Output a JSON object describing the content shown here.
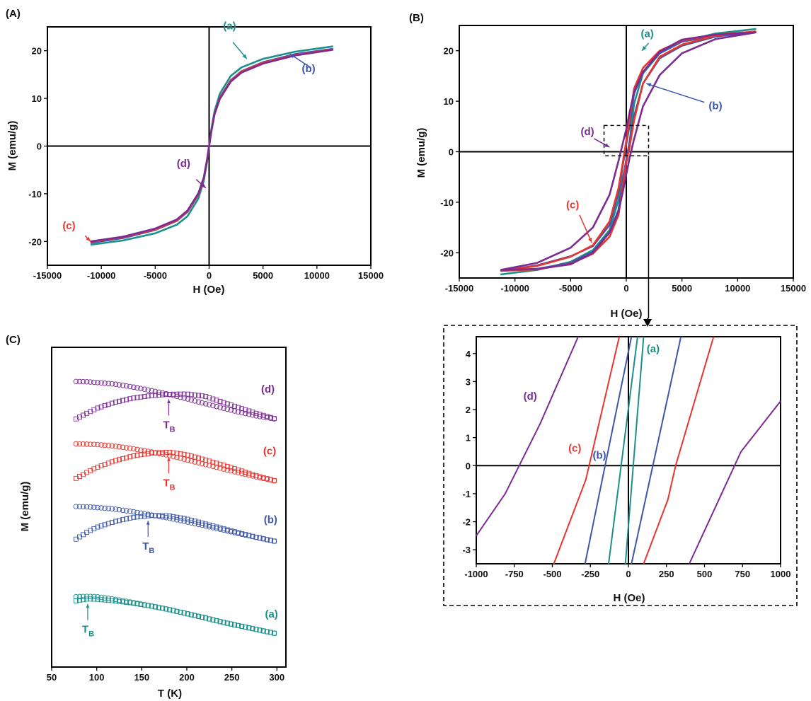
{
  "colors": {
    "a": "#1b8f8b",
    "b": "#3d57a8",
    "c": "#e8352f",
    "d": "#7c2b93",
    "axis": "#000000"
  },
  "chart_data": [
    {
      "id": "A",
      "panel_label": "(A)",
      "type": "line",
      "xlabel": "H (Oe)",
      "ylabel": "M (emu/g)",
      "xlim": [
        -15000,
        15000
      ],
      "ylim": [
        -25,
        25
      ],
      "xticks": [
        -15000,
        -10000,
        -5000,
        0,
        5000,
        10000,
        15000
      ],
      "xtick_labels": [
        "-15000",
        "-10000",
        "-5000",
        "0",
        "5000",
        "10000",
        "15000"
      ],
      "yticks": [
        -20,
        -10,
        0,
        10,
        20
      ],
      "ytick_labels": [
        "-20",
        "-10",
        "0",
        "10",
        "20"
      ],
      "series": [
        {
          "name": "(a)",
          "color_key": "a",
          "x": [
            -11000,
            -8000,
            -5000,
            -3000,
            -2000,
            -1000,
            -500,
            -200,
            0,
            200,
            500,
            1000,
            2000,
            3000,
            5000,
            8000,
            11500
          ],
          "y": [
            -20.7,
            -19.8,
            -18.3,
            -16.5,
            -14.7,
            -11.0,
            -7.3,
            -3.4,
            0,
            3.4,
            7.3,
            11.0,
            14.7,
            16.5,
            18.3,
            19.8,
            20.9
          ]
        },
        {
          "name": "(b)",
          "color_key": "b",
          "x": [
            -11000,
            -8000,
            -5000,
            -3000,
            -2000,
            -1000,
            -500,
            -200,
            0,
            200,
            500,
            1000,
            2000,
            3000,
            5000,
            8000,
            11500
          ],
          "y": [
            -20.3,
            -19.3,
            -17.6,
            -15.7,
            -13.8,
            -10.2,
            -6.8,
            -3.1,
            0,
            3.1,
            6.8,
            10.2,
            13.8,
            15.7,
            17.6,
            19.3,
            20.4
          ]
        },
        {
          "name": "(c)",
          "color_key": "c",
          "x": [
            -11000,
            -8000,
            -5000,
            -3000,
            -2000,
            -1000,
            -500,
            -200,
            0,
            200,
            500,
            1000,
            2000,
            3000,
            5000,
            8000,
            11500
          ],
          "y": [
            -20.1,
            -19.1,
            -17.5,
            -15.6,
            -13.7,
            -10.1,
            -6.7,
            -3.0,
            0,
            3.0,
            6.7,
            10.1,
            13.7,
            15.6,
            17.5,
            19.1,
            20.3
          ]
        },
        {
          "name": "(d)",
          "color_key": "d",
          "x": [
            -11000,
            -8000,
            -5000,
            -3000,
            -2000,
            -1000,
            -500,
            -200,
            0,
            200,
            500,
            1000,
            2000,
            3000,
            5000,
            8000,
            11500
          ],
          "y": [
            -20.0,
            -19.0,
            -17.3,
            -15.4,
            -13.5,
            -9.9,
            -6.6,
            -2.9,
            0,
            2.9,
            6.6,
            9.9,
            13.5,
            15.4,
            17.3,
            19.0,
            20.2
          ]
        }
      ],
      "annotations": [
        {
          "text": "(a)",
          "color_key": "a",
          "x": 1300,
          "y": 24.5,
          "ax": 2200,
          "ay": 21.8,
          "bx": 3500,
          "by": 18.3
        },
        {
          "text": "(b)",
          "color_key": "b",
          "x": 8600,
          "y": 15.5,
          "ax": 9400,
          "ay": 16.5,
          "bx": 7500,
          "by": 19.3
        },
        {
          "text": "(c)",
          "color_key": "c",
          "x": -13600,
          "y": -17.4,
          "ax": -11500,
          "ay": -18.8,
          "bx": -11000,
          "by": -20.0
        },
        {
          "text": "(d)",
          "color_key": "d",
          "x": -3000,
          "y": -4.4,
          "ax": -1200,
          "ay": -7.0,
          "bx": -300,
          "by": -8.8
        }
      ]
    },
    {
      "id": "B",
      "panel_label": "(B)",
      "type": "line",
      "xlabel": "H (Oe)",
      "ylabel": "M (emu/g)",
      "xlim": [
        -15000,
        15000
      ],
      "ylim": [
        -25,
        25
      ],
      "xticks": [
        -15000,
        -10000,
        -5000,
        0,
        5000,
        10000,
        15000
      ],
      "xtick_labels": [
        "-15000",
        "-10000",
        "-5000",
        "0",
        "5000",
        "10000",
        "15000"
      ],
      "yticks": [
        -20,
        -10,
        0,
        10,
        20
      ],
      "ytick_labels": [
        "-20",
        "-10",
        "0",
        "10",
        "20"
      ],
      "series": [
        {
          "name": "(a)",
          "color_key": "a",
          "x": [
            -11300,
            -8000,
            -5000,
            -3000,
            -1500,
            -700,
            -300,
            0,
            300,
            700,
            1500,
            3000,
            5000,
            8000,
            11600,
            8000,
            5000,
            3000,
            1500,
            700,
            300,
            0,
            -300,
            -700,
            -1500,
            -3000,
            -5000,
            -8000,
            -11300
          ],
          "y": [
            -24.3,
            -23.4,
            -21.8,
            -19.5,
            -15.5,
            -9.5,
            -5.0,
            -2.0,
            2.0,
            9.5,
            15.5,
            19.5,
            21.8,
            23.4,
            24.3,
            23.4,
            21.8,
            19.5,
            15.5,
            9.5,
            5.0,
            2.0,
            -2.0,
            -9.5,
            -15.5,
            -19.5,
            -21.8,
            -23.4,
            -24.3
          ]
        },
        {
          "name": "(b)",
          "color_key": "b",
          "x": [
            -11300,
            -8000,
            -5000,
            -3000,
            -1500,
            -700,
            -300,
            0,
            300,
            700,
            1500,
            3000,
            5000,
            8000,
            11600,
            8000,
            5000,
            3000,
            1500,
            700,
            300,
            0,
            -300,
            -700,
            -1500,
            -3000,
            -5000,
            -8000,
            -11300
          ],
          "y": [
            -23.6,
            -22.5,
            -20.7,
            -18.7,
            -14.5,
            -8.0,
            -2.5,
            1.5,
            5.5,
            11.5,
            15.8,
            19.5,
            21.8,
            23.0,
            23.7,
            22.8,
            21.0,
            18.5,
            13.5,
            7.0,
            2.0,
            -1.5,
            -5.5,
            -11.5,
            -16.0,
            -19.8,
            -22.0,
            -23.2,
            -23.6
          ]
        },
        {
          "name": "(c)",
          "color_key": "c",
          "x": [
            -11300,
            -8000,
            -5000,
            -3000,
            -1500,
            -700,
            -300,
            0,
            300,
            700,
            1500,
            3000,
            5000,
            8000,
            11600,
            8000,
            5000,
            3000,
            1500,
            700,
            300,
            0,
            -300,
            -700,
            -1500,
            -3000,
            -5000,
            -8000,
            -11300
          ],
          "y": [
            -23.6,
            -22.6,
            -20.8,
            -18.5,
            -13.8,
            -7.2,
            -2.0,
            2.2,
            6.5,
            12.5,
            16.6,
            20.0,
            22.0,
            23.2,
            23.8,
            23.0,
            21.2,
            18.8,
            13.5,
            6.2,
            1.0,
            -2.2,
            -6.5,
            -12.5,
            -16.8,
            -20.2,
            -22.2,
            -23.3,
            -23.6
          ]
        },
        {
          "name": "(d)",
          "color_key": "d",
          "x": [
            -11300,
            -8000,
            -5000,
            -3000,
            -1500,
            -700,
            -300,
            0,
            300,
            700,
            1500,
            3000,
            5000,
            8000,
            11600,
            8000,
            5000,
            3000,
            1500,
            700,
            300,
            0,
            -300,
            -700,
            -1500,
            -3000,
            -5000,
            -8000,
            -11300
          ],
          "y": [
            -23.4,
            -22.0,
            -19.0,
            -15.0,
            -8.5,
            -1.8,
            1.8,
            4.5,
            7.8,
            11.8,
            15.8,
            19.8,
            22.2,
            23.2,
            23.6,
            22.3,
            19.5,
            15.2,
            9.0,
            2.5,
            -1.2,
            -4.5,
            -7.8,
            -11.8,
            -16.0,
            -20.0,
            -22.3,
            -23.2,
            -23.4
          ]
        }
      ],
      "annotations": [
        {
          "text": "(a)",
          "color_key": "a",
          "x": 1300,
          "y": 22.7,
          "ax": 2000,
          "ay": 21.5,
          "bx": 1400,
          "by": 20.0
        },
        {
          "text": "(b)",
          "color_key": "b",
          "x": 7400,
          "y": 8.4,
          "ax": 7000,
          "ay": 9.8,
          "bx": 1800,
          "by": 13.5
        },
        {
          "text": "(c)",
          "color_key": "c",
          "x": -5400,
          "y": -11.2,
          "ax": -4200,
          "ay": -12.5,
          "bx": -3100,
          "by": -18.0
        },
        {
          "text": "(d)",
          "color_key": "d",
          "x": -4100,
          "y": 3.3,
          "ax": -2900,
          "ay": 2.6,
          "bx": -1500,
          "by": 0.9
        }
      ],
      "zoom_box": {
        "x": [
          -2000,
          2000
        ],
        "y": [
          -0.8,
          5.2
        ]
      }
    },
    {
      "id": "C",
      "panel_label": "(C)",
      "type": "scatter",
      "xlabel": "T (K)",
      "ylabel": "M (emu/g)",
      "xlim": [
        50,
        310
      ],
      "ylim": [
        0,
        100
      ],
      "xticks": [
        50,
        100,
        150,
        200,
        250,
        300
      ],
      "xtick_labels": [
        "50",
        "100",
        "150",
        "200",
        "250",
        "300"
      ],
      "series": [
        {
          "name": "(a)",
          "color_key": "a",
          "x": [
            77,
            90,
            100,
            120,
            140,
            160,
            180,
            200,
            220,
            240,
            260,
            280,
            300
          ],
          "fc": [
            22.0,
            22.1,
            22.0,
            21.2,
            20.2,
            19.1,
            18.0,
            16.7,
            15.4,
            14.0,
            12.8,
            11.6,
            10.4
          ],
          "zfc": [
            20.7,
            21.3,
            21.2,
            20.7,
            20.0,
            19.1,
            18.0,
            16.7,
            15.4,
            14.0,
            12.8,
            11.6,
            10.4
          ],
          "tb": 90,
          "tb_label": "T",
          "tb_sub": "B",
          "series_label": "(a)",
          "label_x": 294,
          "label_y": 15.5
        },
        {
          "name": "(b)",
          "color_key": "b",
          "x": [
            77,
            90,
            100,
            120,
            140,
            160,
            180,
            200,
            220,
            240,
            260,
            280,
            300
          ],
          "fc": [
            50.2,
            50.1,
            49.9,
            49.4,
            48.6,
            47.6,
            46.6,
            45.4,
            44.2,
            42.9,
            41.6,
            40.4,
            39.2
          ],
          "zfc": [
            40.0,
            42.3,
            43.7,
            45.5,
            46.8,
            47.4,
            47.3,
            46.3,
            44.8,
            43.3,
            41.8,
            40.4,
            39.2
          ],
          "tb": 157,
          "tb_label": "T",
          "tb_sub": "B",
          "series_label": "(b)",
          "label_x": 293,
          "label_y": 45.0
        },
        {
          "name": "(c)",
          "color_key": "c",
          "x": [
            77,
            90,
            100,
            120,
            140,
            160,
            180,
            200,
            220,
            240,
            260,
            280,
            300
          ],
          "fc": [
            69.8,
            69.7,
            69.6,
            69.1,
            68.3,
            67.3,
            66.2,
            64.8,
            63.4,
            62.0,
            60.6,
            59.3,
            58.1
          ],
          "zfc": [
            59.0,
            61.0,
            62.4,
            64.5,
            66.0,
            66.9,
            67.2,
            66.4,
            64.8,
            63.2,
            61.4,
            59.6,
            58.1
          ],
          "tb": 180,
          "tb_label": "T",
          "tb_sub": "B",
          "series_label": "(c)",
          "label_x": 292,
          "label_y": 66.5
        },
        {
          "name": "(d)",
          "color_key": "d",
          "x": [
            77,
            90,
            100,
            120,
            140,
            160,
            180,
            200,
            220,
            240,
            260,
            280,
            300
          ],
          "fc": [
            89.3,
            89.2,
            89.0,
            88.5,
            87.6,
            86.5,
            85.3,
            83.9,
            82.4,
            81.0,
            79.6,
            78.4,
            77.5
          ],
          "zfc": [
            77.6,
            79.5,
            80.9,
            82.8,
            84.1,
            84.9,
            85.3,
            85.4,
            84.7,
            82.8,
            80.9,
            79.1,
            77.5
          ],
          "tb": 180,
          "tb_label": "T",
          "tb_sub": "B",
          "series_label": "(d)",
          "label_x": 290,
          "label_y": 85.8
        }
      ]
    },
    {
      "id": "inset",
      "type": "line",
      "xlabel": "H (Oe)",
      "xlim": [
        -1000,
        1000
      ],
      "ylim": [
        -3.5,
        4.6
      ],
      "xticks": [
        -1000,
        -750,
        -500,
        -250,
        0,
        250,
        500,
        750,
        1000
      ],
      "xtick_labels": [
        "-1000",
        "-750",
        "-500",
        "-250",
        "0",
        "250",
        "500",
        "750",
        "1000"
      ],
      "yticks": [
        -3,
        -2,
        -1,
        0,
        1,
        2,
        3,
        4
      ],
      "ytick_labels": [
        "-3",
        "-2",
        "-1",
        "0",
        "1",
        "2",
        "3",
        "4"
      ],
      "series": [
        {
          "name": "(a)",
          "color_key": "a",
          "lines": [
            {
              "x": [
                -130,
                60
              ],
              "y": [
                -3.5,
                4.6
              ]
            },
            {
              "x": [
                -20,
                100
              ],
              "y": [
                -3.5,
                4.6
              ]
            }
          ]
        },
        {
          "name": "(b)",
          "color_key": "b",
          "lines": [
            {
              "x": [
                -285,
                20
              ],
              "y": [
                -3.5,
                4.6
              ]
            },
            {
              "x": [
                20,
                345
              ],
              "y": [
                -3.5,
                4.6
              ]
            }
          ]
        },
        {
          "name": "(c)",
          "color_key": "c",
          "lines": [
            {
              "x": [
                -490,
                -280,
                -60
              ],
              "y": [
                -3.5,
                -0.5,
                4.6
              ]
            },
            {
              "x": [
                100,
                260,
                310,
                500,
                560
              ],
              "y": [
                -3.5,
                -1.2,
                0,
                3.5,
                4.6
              ]
            }
          ]
        },
        {
          "name": "(d)",
          "color_key": "d",
          "lines": [
            {
              "x": [
                -1000,
                -810,
                -580,
                -330
              ],
              "y": [
                -2.5,
                -1.0,
                1.5,
                4.6
              ]
            },
            {
              "x": [
                400,
                740,
                1000
              ],
              "y": [
                -3.5,
                0.5,
                2.3
              ]
            }
          ]
        }
      ],
      "annotations": [
        {
          "text": "(a)",
          "color_key": "a",
          "x": 120,
          "y": 4.05
        },
        {
          "text": "(b)",
          "color_key": "b",
          "x": -235,
          "y": 0.25
        },
        {
          "text": "(c)",
          "color_key": "c",
          "x": -395,
          "y": 0.5
        },
        {
          "text": "(d)",
          "color_key": "d",
          "x": -690,
          "y": 2.35
        }
      ]
    }
  ]
}
